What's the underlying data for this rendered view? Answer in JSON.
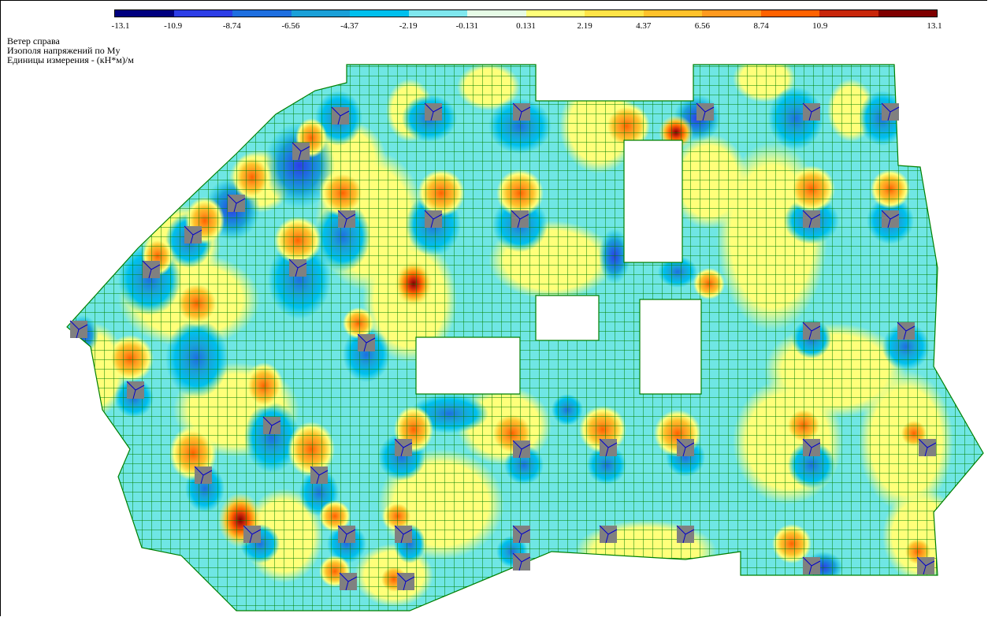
{
  "caption": {
    "line1": "Ветер справа",
    "line2": "Изополя напряжений по My",
    "line3": "Единицы измерения - (кН*м)/м"
  },
  "scale": {
    "colors": [
      "#00007f",
      "#2d3ee6",
      "#1e6fe0",
      "#1aa0d8",
      "#00c0ee",
      "#7fe7ee",
      "#e6fbe6",
      "#ffff7a",
      "#ffe447",
      "#ffc22b",
      "#ff9a1f",
      "#ff6200",
      "#c8260a",
      "#7f0000"
    ],
    "ticks": [
      "-13.1",
      "-10.9",
      "-8.74",
      "-6.56",
      "-4.37",
      "-2.19",
      "-0.131",
      "0.131",
      "2.19",
      "4.37",
      "6.56",
      "8.74",
      "10.9",
      "13.1"
    ]
  },
  "colors": {
    "mesh_line": "#008000",
    "column_fill": "#808080",
    "support_line": "#0000cc",
    "field_base": "#6fe6e4"
  }
}
